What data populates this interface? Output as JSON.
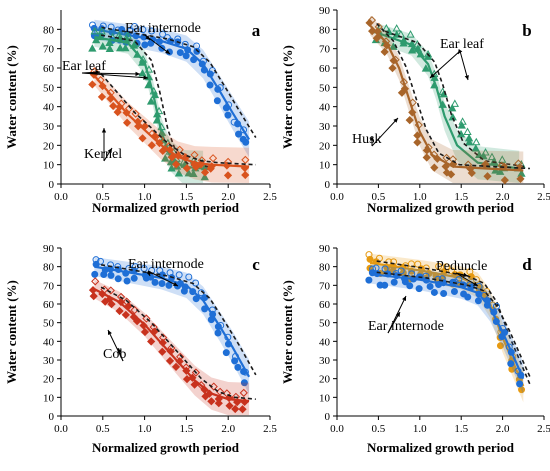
{
  "colors": {
    "blue": "#1f6fd6",
    "green": "#2e9b6e",
    "red": "#d9531e",
    "brown": "#a8652a",
    "cob": "#c8321e",
    "orange": "#e69a12"
  },
  "chart_data": [
    {
      "panel": "a",
      "type": "scatter",
      "xlabel": "Normalized growth period",
      "ylabel": "Water content (%)",
      "xlim": [
        0.0,
        2.5
      ],
      "ylim": [
        0,
        90
      ],
      "xticks": [
        "0.0",
        "0.5",
        "1.0",
        "1.5",
        "2.0",
        "2.5"
      ],
      "yticks": [
        "0",
        "10",
        "20",
        "30",
        "40",
        "50",
        "60",
        "70",
        "80"
      ],
      "annotations": [
        "Ear internode",
        "Ear leaf",
        "Kernel"
      ],
      "series": [
        {
          "name": "Ear internode",
          "color": "blue",
          "x": [
            0.4,
            0.5,
            0.6,
            0.7,
            0.8,
            0.9,
            1.0,
            1.1,
            1.2,
            1.3,
            1.4,
            1.5,
            1.6,
            1.7,
            1.8,
            1.9,
            2.0,
            2.1,
            2.2
          ],
          "y": [
            80,
            79,
            79,
            78,
            77,
            77,
            76,
            75,
            74,
            73,
            72,
            70,
            67,
            62,
            55,
            47,
            38,
            30,
            24
          ],
          "fit_x": [
            0.4,
            0.8,
            1.2,
            1.5,
            1.7,
            1.9,
            2.05,
            2.25
          ],
          "fit_y": [
            80,
            77,
            74,
            70,
            62,
            48,
            37,
            23
          ]
        },
        {
          "name": "Ear leaf",
          "color": "green",
          "x": [
            0.4,
            0.5,
            0.6,
            0.7,
            0.8,
            0.9,
            1.0,
            1.05,
            1.1,
            1.15,
            1.2,
            1.25,
            1.3,
            1.35,
            1.4,
            1.5,
            1.6,
            1.7
          ],
          "y": [
            75,
            76,
            74,
            75,
            73,
            70,
            62,
            55,
            45,
            35,
            25,
            18,
            14,
            12,
            10,
            9,
            8,
            8
          ],
          "fit_x": [
            0.4,
            0.8,
            1.0,
            1.1,
            1.2,
            1.3,
            1.45,
            1.7
          ],
          "fit_y": [
            76,
            73,
            63,
            47,
            27,
            15,
            9,
            8
          ]
        },
        {
          "name": "Kernel",
          "color": "red",
          "x": [
            0.4,
            0.5,
            0.6,
            0.7,
            0.8,
            0.9,
            1.0,
            1.1,
            1.2,
            1.3,
            1.4,
            1.5,
            1.6,
            1.7,
            1.8,
            2.0,
            2.2
          ],
          "y": [
            56,
            50,
            45,
            40,
            36,
            32,
            28,
            24,
            20,
            17,
            14,
            12,
            11,
            10,
            10,
            9,
            9
          ],
          "fit_x": [
            0.4,
            0.6,
            0.8,
            1.0,
            1.2,
            1.4,
            1.6,
            1.8,
            2.25
          ],
          "fit_y": [
            56,
            46,
            36,
            28,
            20,
            14,
            11,
            10,
            9
          ]
        }
      ]
    },
    {
      "panel": "b",
      "type": "scatter",
      "xlabel": "Normalized growth period",
      "ylabel": "Water content (%)",
      "xlim": [
        0.0,
        2.5
      ],
      "ylim": [
        0,
        90
      ],
      "xticks": [
        "0.0",
        "0.5",
        "1.0",
        "1.5",
        "2.0",
        "2.5"
      ],
      "yticks": [
        "0",
        "10",
        "20",
        "30",
        "40",
        "50",
        "60",
        "70",
        "80",
        "90"
      ],
      "annotations": [
        "Ear leaf",
        "Husk"
      ],
      "series": [
        {
          "name": "Ear leaf",
          "color": "green",
          "x": [
            0.5,
            0.6,
            0.7,
            0.8,
            0.9,
            1.0,
            1.1,
            1.2,
            1.3,
            1.4,
            1.5,
            1.6,
            1.7,
            1.8,
            1.9,
            2.0,
            2.2
          ],
          "y": [
            78,
            77,
            76,
            75,
            73,
            70,
            64,
            55,
            45,
            38,
            30,
            24,
            18,
            14,
            11,
            9,
            8
          ],
          "fit_x": [
            0.5,
            0.9,
            1.1,
            1.2,
            1.3,
            1.45,
            1.7,
            2.2
          ],
          "fit_y": [
            78,
            72,
            62,
            50,
            35,
            20,
            11,
            8
          ]
        },
        {
          "name": "Husk",
          "color": "brown",
          "x": [
            0.4,
            0.5,
            0.6,
            0.7,
            0.8,
            0.9,
            1.0,
            1.1,
            1.2,
            1.3,
            1.4,
            1.6,
            1.8,
            2.0,
            2.2
          ],
          "y": [
            82,
            78,
            72,
            62,
            50,
            38,
            26,
            17,
            12,
            10,
            9,
            8,
            8,
            7,
            7
          ],
          "fit_x": [
            0.4,
            0.6,
            0.75,
            0.9,
            1.0,
            1.15,
            1.4,
            1.8,
            2.25
          ],
          "fit_y": [
            82,
            73,
            60,
            40,
            27,
            15,
            9,
            8,
            7
          ]
        }
      ]
    },
    {
      "panel": "c",
      "type": "scatter",
      "xlabel": "Normalized growth period",
      "ylabel": "Water content (%)",
      "xlim": [
        0.0,
        2.5
      ],
      "ylim": [
        0,
        90
      ],
      "xticks": [
        "0.0",
        "0.5",
        "1.0",
        "1.5",
        "2.0",
        "2.5"
      ],
      "yticks": [
        "0",
        "10",
        "20",
        "30",
        "40",
        "50",
        "60",
        "70",
        "80",
        "90"
      ],
      "annotations": [
        "Ear internode",
        "Cob"
      ],
      "series": [
        {
          "name": "Ear internode",
          "color": "blue",
          "x": [
            0.4,
            0.5,
            0.6,
            0.7,
            0.8,
            0.9,
            1.0,
            1.1,
            1.2,
            1.3,
            1.4,
            1.5,
            1.6,
            1.7,
            1.8,
            1.9,
            2.0,
            2.1,
            2.2
          ],
          "y": [
            80,
            79,
            79,
            78,
            77,
            77,
            76,
            75,
            74,
            73,
            72,
            70,
            67,
            62,
            55,
            47,
            38,
            30,
            22
          ],
          "fit_x": [
            0.4,
            0.8,
            1.2,
            1.5,
            1.7,
            1.9,
            2.05,
            2.25
          ],
          "fit_y": [
            80,
            77,
            74,
            70,
            62,
            48,
            37,
            21
          ]
        },
        {
          "name": "Cob",
          "color": "cob",
          "x": [
            0.4,
            0.5,
            0.6,
            0.7,
            0.8,
            0.9,
            1.0,
            1.1,
            1.2,
            1.3,
            1.4,
            1.5,
            1.6,
            1.7,
            1.8,
            1.9,
            2.0,
            2.1,
            2.2
          ],
          "y": [
            68,
            66,
            63,
            60,
            57,
            53,
            49,
            44,
            39,
            34,
            29,
            24,
            19,
            15,
            12,
            10,
            9,
            8,
            8
          ],
          "fit_x": [
            0.4,
            0.7,
            1.0,
            1.2,
            1.4,
            1.6,
            1.8,
            2.0,
            2.25
          ],
          "fit_y": [
            68,
            61,
            49,
            39,
            29,
            19,
            12,
            9,
            8
          ]
        }
      ]
    },
    {
      "panel": "d",
      "type": "scatter",
      "xlabel": "Normalized growth period",
      "ylabel": "Water content (%)",
      "xlim": [
        0.0,
        2.5
      ],
      "ylim": [
        0,
        90
      ],
      "xticks": [
        "0.0",
        "0.5",
        "1.0",
        "1.5",
        "2.0",
        "2.5"
      ],
      "yticks": [
        "0",
        "10",
        "20",
        "30",
        "40",
        "50",
        "60",
        "70",
        "80",
        "90"
      ],
      "annotations": [
        "Peduncle",
        "Ear internode"
      ],
      "series": [
        {
          "name": "Peduncle",
          "color": "orange",
          "x": [
            0.4,
            0.5,
            0.6,
            0.7,
            0.8,
            0.9,
            1.0,
            1.1,
            1.2,
            1.3,
            1.4,
            1.5,
            1.6,
            1.7,
            1.8,
            1.9,
            2.0,
            2.1,
            2.2
          ],
          "y": [
            82,
            81,
            80,
            80,
            79,
            78,
            78,
            77,
            76,
            76,
            75,
            74,
            73,
            70,
            65,
            55,
            42,
            30,
            18
          ],
          "fit_x": [
            0.4,
            1.0,
            1.5,
            1.7,
            1.85,
            2.0,
            2.25
          ],
          "fit_y": [
            82,
            78,
            74,
            70,
            60,
            42,
            16
          ]
        },
        {
          "name": "Ear internode",
          "color": "blue",
          "x": [
            0.4,
            0.5,
            0.6,
            0.7,
            0.8,
            0.9,
            1.0,
            1.1,
            1.2,
            1.3,
            1.4,
            1.5,
            1.6,
            1.7,
            1.8,
            1.9,
            2.0,
            2.1,
            2.2
          ],
          "y": [
            76,
            75,
            75,
            74,
            74,
            73,
            73,
            72,
            71,
            70,
            70,
            69,
            68,
            66,
            62,
            55,
            45,
            33,
            22
          ],
          "fit_x": [
            0.4,
            1.0,
            1.5,
            1.7,
            1.85,
            2.0,
            2.25
          ],
          "fit_y": [
            76,
            73,
            69,
            66,
            58,
            45,
            20
          ]
        }
      ]
    }
  ]
}
